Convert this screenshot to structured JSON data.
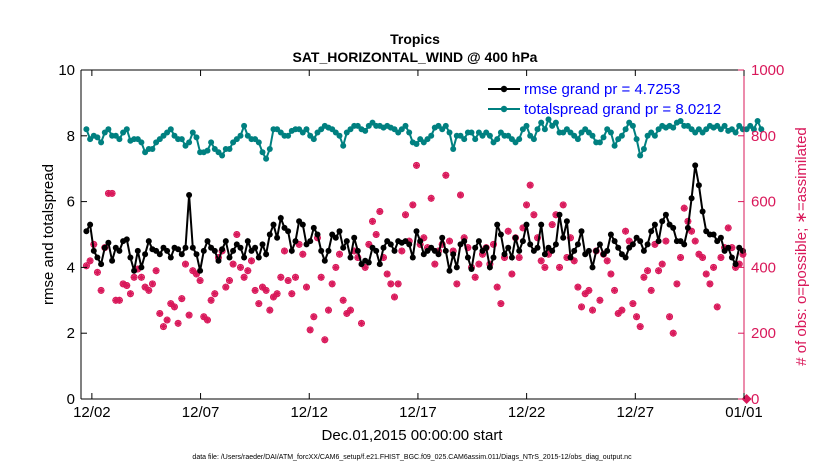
{
  "chart_data": {
    "type": "line",
    "title": "Tropics",
    "subtitle": "SAT_HORIZONTAL_WIND @ 400 hPa",
    "xlabel": "Dec.01,2015 00:00:00 start",
    "ylabel_left": "rmse and totalspread",
    "ylabel_right": "# of obs: o=possible; ∗=assimilated",
    "footnote": "data file: /Users/raeder/DAI/ATM_forcXX/CAM6_setup/f.e21.FHIST_BGC.f09_025.CAM6assim.011/Diags_NTrS_2015-12/obs_diag_output.nc",
    "xlim": [
      1.5,
      32.0
    ],
    "ylim_left": [
      0,
      10
    ],
    "ylim_right": [
      0,
      1000
    ],
    "x_ticks": [
      {
        "v": 2,
        "label": "12/02"
      },
      {
        "v": 7,
        "label": "12/07"
      },
      {
        "v": 12,
        "label": "12/12"
      },
      {
        "v": 17,
        "label": "12/17"
      },
      {
        "v": 22,
        "label": "12/22"
      },
      {
        "v": 27,
        "label": "12/27"
      },
      {
        "v": 32,
        "label": "01/01"
      }
    ],
    "y_ticks_left": [
      "0",
      "2",
      "4",
      "6",
      "8",
      "10"
    ],
    "y_ticks_right": [
      "0",
      "200",
      "400",
      "600",
      "800",
      "1000"
    ],
    "colors": {
      "rmse": "#000000",
      "spread": "#008080",
      "obs": "#d9185a",
      "legend_text": "#0000ff",
      "right_axis": "#d9185a"
    },
    "legend_position": "top-right",
    "grid": false,
    "series": [
      {
        "name": "rmse grand pr = 4.7253",
        "axis": "left",
        "values": [
          5.1,
          5.3,
          4.5,
          4.3,
          4.1,
          4.6,
          4.75,
          4.2,
          4.6,
          4.5,
          4.8,
          4.85,
          4.3,
          3.9,
          4.5,
          4.0,
          4.4,
          4.8,
          4.55,
          4.5,
          4.4,
          4.6,
          4.5,
          4.3,
          4.6,
          4.55,
          4.4,
          4.6,
          6.2,
          4.6,
          4.4,
          3.9,
          4.5,
          4.8,
          4.6,
          4.5,
          4.2,
          4.55,
          4.8,
          4.3,
          4.5,
          4.7,
          4.6,
          4.3,
          4.8,
          4.5,
          4.6,
          4.3,
          4.7,
          4.4,
          5.0,
          5.3,
          4.9,
          5.5,
          5.2,
          5.1,
          4.5,
          4.8,
          5.4,
          5.3,
          4.7,
          4.8,
          5.2,
          5.0,
          4.5,
          4.2,
          4.5,
          5.0,
          4.9,
          5.1,
          4.6,
          4.8,
          4.3,
          4.9,
          4.5,
          4.1,
          4.2,
          4.15,
          4.6,
          4.5,
          4.1,
          4.6,
          4.8,
          4.7,
          4.5,
          4.8,
          4.75,
          4.8,
          4.7,
          4.3,
          5.1,
          4.8,
          4.4,
          4.5,
          4.6,
          4.5,
          4.4,
          4.9,
          4.5,
          3.9,
          4.4,
          4.0,
          4.7,
          4.8,
          4.3,
          3.95,
          4.6,
          4.8,
          4.5,
          4.6,
          4.0,
          4.3,
          5.3,
          5.0,
          4.4,
          4.6,
          4.3,
          4.9,
          4.5,
          4.8,
          5.3,
          4.7,
          4.5,
          4.6,
          5.3,
          4.4,
          4.6,
          4.5,
          4.7,
          5.6,
          4.9,
          5.4,
          4.3,
          4.5,
          4.7,
          5.1,
          4.4,
          4.5,
          4.0,
          4.5,
          4.7,
          4.4,
          4.5,
          5.0,
          4.8,
          4.6,
          4.4,
          4.3,
          4.6,
          4.7,
          4.9,
          4.8,
          4.5,
          4.7,
          5.1,
          5.3,
          4.8,
          5.4,
          5.6,
          5.3,
          5.2,
          4.8,
          4.8,
          4.7,
          5.2,
          6.1,
          7.1,
          6.5,
          5.7,
          5.1,
          5.0,
          5.0,
          4.8,
          4.9,
          4.5,
          4.6,
          4.3,
          4.1,
          4.6,
          4.5
        ]
      },
      {
        "name": "totalspread grand pr = 8.0212",
        "axis": "left",
        "values": [
          8.2,
          7.9,
          8.0,
          7.95,
          7.8,
          8.1,
          8.2,
          8.0,
          8.0,
          7.9,
          8.1,
          8.2,
          7.85,
          7.9,
          7.9,
          7.8,
          7.5,
          7.6,
          7.6,
          7.8,
          7.9,
          8.0,
          8.1,
          8.2,
          8.0,
          7.9,
          7.9,
          7.7,
          7.8,
          8.1,
          7.95,
          7.5,
          7.5,
          7.55,
          7.8,
          7.6,
          7.5,
          7.4,
          7.6,
          7.6,
          7.8,
          7.9,
          8.0,
          8.3,
          8.0,
          7.9,
          7.9,
          7.8,
          7.5,
          7.3,
          7.6,
          8.2,
          8.2,
          8.1,
          8.0,
          8.0,
          8.15,
          8.2,
          8.2,
          8.1,
          8.2,
          8.0,
          7.9,
          8.1,
          8.2,
          8.3,
          8.25,
          8.2,
          8.1,
          8.0,
          7.7,
          8.1,
          8.2,
          8.3,
          8.3,
          8.2,
          8.15,
          8.3,
          8.4,
          8.3,
          8.3,
          8.25,
          8.3,
          8.25,
          8.2,
          8.1,
          8.2,
          8.3,
          8.1,
          7.8,
          7.75,
          7.9,
          7.8,
          7.9,
          8.0,
          8.25,
          8.3,
          8.2,
          8.3,
          8.1,
          7.6,
          8.0,
          8.0,
          7.9,
          8.1,
          8.1,
          7.9,
          8.1,
          8.0,
          8.1,
          8.0,
          7.8,
          7.9,
          8.1,
          8.0,
          8.0,
          7.9,
          7.8,
          7.9,
          8.2,
          8.3,
          8.0,
          7.9,
          8.2,
          8.4,
          8.2,
          8.5,
          8.3,
          8.4,
          8.1,
          8.1,
          8.2,
          8.1,
          8.0,
          7.9,
          8.1,
          8.2,
          8.1,
          8.0,
          7.8,
          7.8,
          7.95,
          8.2,
          8.1,
          7.7,
          7.9,
          8.0,
          8.2,
          8.4,
          8.3,
          7.9,
          7.4,
          7.6,
          8.0,
          8.1,
          8.0,
          8.2,
          8.3,
          8.25,
          8.3,
          8.25,
          8.4,
          8.45,
          8.3,
          8.3,
          8.2,
          8.1,
          8.2,
          8.1,
          8.2,
          8.3,
          8.25,
          8.3,
          8.2,
          8.3,
          8.15,
          8.2,
          8.1,
          8.3,
          8.2,
          8.2,
          8.3,
          8.2,
          8.45,
          8.2
        ]
      },
      {
        "name": "obs possible (o) / assimilated (*)",
        "axis": "right",
        "values": [
          405,
          420,
          470,
          385,
          330,
          460,
          625,
          625,
          300,
          300,
          350,
          345,
          320,
          370,
          395,
          370,
          340,
          330,
          350,
          390,
          260,
          220,
          240,
          290,
          280,
          230,
          305,
          410,
          255,
          390,
          380,
          360,
          250,
          240,
          300,
          320,
          430,
          450,
          340,
          360,
          410,
          500,
          400,
          370,
          390,
          420,
          330,
          290,
          340,
          330,
          270,
          310,
          320,
          370,
          450,
          360,
          320,
          370,
          470,
          440,
          340,
          210,
          250,
          490,
          370,
          180,
          270,
          350,
          400,
          440,
          300,
          260,
          270,
          450,
          430,
          230,
          400,
          470,
          540,
          500,
          570,
          430,
          380,
          350,
          310,
          350,
          450,
          560,
          480,
          590,
          710,
          470,
          490,
          460,
          610,
          410,
          450,
          470,
          680,
          480,
          450,
          350,
          620,
          490,
          460,
          400,
          370,
          410,
          440,
          460,
          410,
          470,
          340,
          290,
          430,
          510,
          380,
          490,
          430,
          520,
          590,
          650,
          560,
          490,
          420,
          400,
          440,
          530,
          560,
          400,
          590,
          430,
          490,
          420,
          340,
          280,
          320,
          330,
          270,
          450,
          300,
          440,
          420,
          380,
          330,
          260,
          270,
          510,
          480,
          290,
          250,
          220,
          370,
          390,
          330,
          470,
          390,
          410,
          480,
          250,
          200,
          350,
          430,
          580,
          540,
          510,
          480,
          440,
          430,
          380,
          350,
          400,
          280,
          430,
          460,
          520,
          460,
          400,
          410,
          440,
          0
        ]
      }
    ]
  }
}
